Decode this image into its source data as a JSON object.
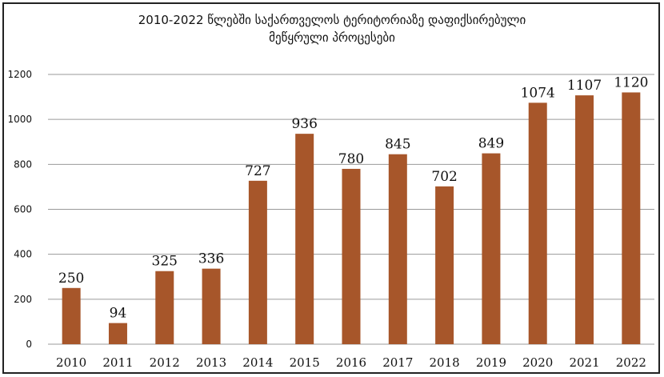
{
  "colors": {
    "bar": "#A7562A",
    "grid": "#9a9a9a"
  },
  "chart_data": {
    "type": "bar",
    "title_line1": "2010-2022 წლებში საქართველოს ტერიტორიაზე დაფიქსირებული",
    "title_line2": "მეწყრული პროცესები",
    "xlabel": "",
    "ylabel": "",
    "categories": [
      "2010",
      "2011",
      "2012",
      "2013",
      "2014",
      "2015",
      "2016",
      "2017",
      "2018",
      "2019",
      "2020",
      "2021",
      "2022"
    ],
    "values": [
      250,
      94,
      325,
      336,
      727,
      936,
      780,
      845,
      702,
      849,
      1074,
      1107,
      1120
    ],
    "ylim": [
      0,
      1200
    ],
    "yticks": [
      0,
      200,
      400,
      600,
      800,
      1000,
      1200
    ],
    "grid": true,
    "data_labels": true
  }
}
